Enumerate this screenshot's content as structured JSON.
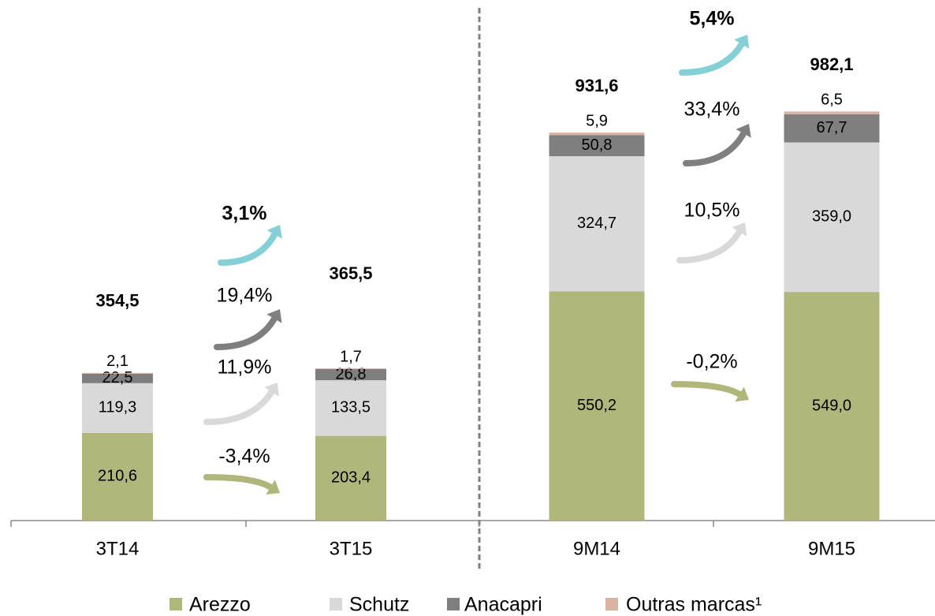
{
  "chart_data": {
    "type": "stacked_bar",
    "categories": [
      "3T14",
      "3T15",
      "9M14",
      "9M15"
    ],
    "series": [
      {
        "name": "Arezzo",
        "color": "#b1b77b",
        "values": [
          210.6,
          203.4,
          550.2,
          549.0
        ],
        "value_labels": [
          "210,6",
          "203,4",
          "550,2",
          "549,0"
        ]
      },
      {
        "name": "Schutz",
        "color": "#d9d9d9",
        "values": [
          119.3,
          133.5,
          324.7,
          359.0
        ],
        "value_labels": [
          "119,3",
          "133,5",
          "324,7",
          "359,0"
        ]
      },
      {
        "name": "Anacapri",
        "color": "#7f7f7f",
        "values": [
          22.5,
          26.8,
          50.8,
          67.7
        ],
        "value_labels": [
          "22,5",
          "26,8",
          "50,8",
          "67,7"
        ]
      },
      {
        "name": "Outras marcas¹",
        "color": "#d9b3a3",
        "values": [
          2.1,
          1.7,
          5.9,
          6.5
        ],
        "value_labels": [
          "2,1",
          "1,7",
          "5,9",
          "6,5"
        ]
      }
    ],
    "totals": [
      354.5,
      365.5,
      931.6,
      982.1
    ],
    "total_labels": [
      "354,5",
      "365,5",
      "931,6",
      "982,1"
    ],
    "growth": [
      [
        "-3,4%",
        "11,9%",
        "19,4%",
        "3,1%"
      ],
      [
        "-0,2%",
        "10,5%",
        "33,4%",
        "5,4%"
      ]
    ],
    "ylim": [
      0,
      1000
    ]
  }
}
